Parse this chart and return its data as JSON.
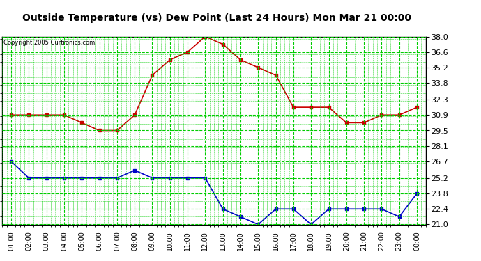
{
  "title": "Outside Temperature (vs) Dew Point (Last 24 Hours) Mon Mar 21 00:00",
  "copyright": "Copyright 2005 Curtronics.com",
  "x_labels": [
    "01:00",
    "02:00",
    "03:00",
    "04:00",
    "05:00",
    "06:00",
    "07:00",
    "08:00",
    "09:00",
    "10:00",
    "11:00",
    "12:00",
    "13:00",
    "14:00",
    "15:00",
    "16:00",
    "17:00",
    "18:00",
    "19:00",
    "20:00",
    "21:00",
    "22:00",
    "23:00",
    "00:00"
  ],
  "y_min": 21.0,
  "y_max": 38.0,
  "y_ticks": [
    21.0,
    22.4,
    23.8,
    25.2,
    26.7,
    28.1,
    29.5,
    30.9,
    32.3,
    33.8,
    35.2,
    36.6,
    38.0
  ],
  "temp_data": [
    30.9,
    30.9,
    30.9,
    30.9,
    30.2,
    29.5,
    29.5,
    30.9,
    34.5,
    35.9,
    36.6,
    38.0,
    37.3,
    35.9,
    35.2,
    34.5,
    31.6,
    31.6,
    31.6,
    30.2,
    30.2,
    30.9,
    30.9,
    31.6
  ],
  "dew_data": [
    26.7,
    25.2,
    25.2,
    25.2,
    25.2,
    25.2,
    25.2,
    25.9,
    25.2,
    25.2,
    25.2,
    25.2,
    22.4,
    21.7,
    21.0,
    22.4,
    22.4,
    21.0,
    22.4,
    22.4,
    22.4,
    22.4,
    21.7,
    23.8
  ],
  "temp_color": "#cc0000",
  "dew_color": "#0000cc",
  "grid_color": "#00cc00",
  "bg_color": "#ffffff",
  "plot_bg": "#ffffff",
  "title_color": "#000000",
  "marker": "s",
  "marker_size": 3,
  "linewidth": 1.2
}
